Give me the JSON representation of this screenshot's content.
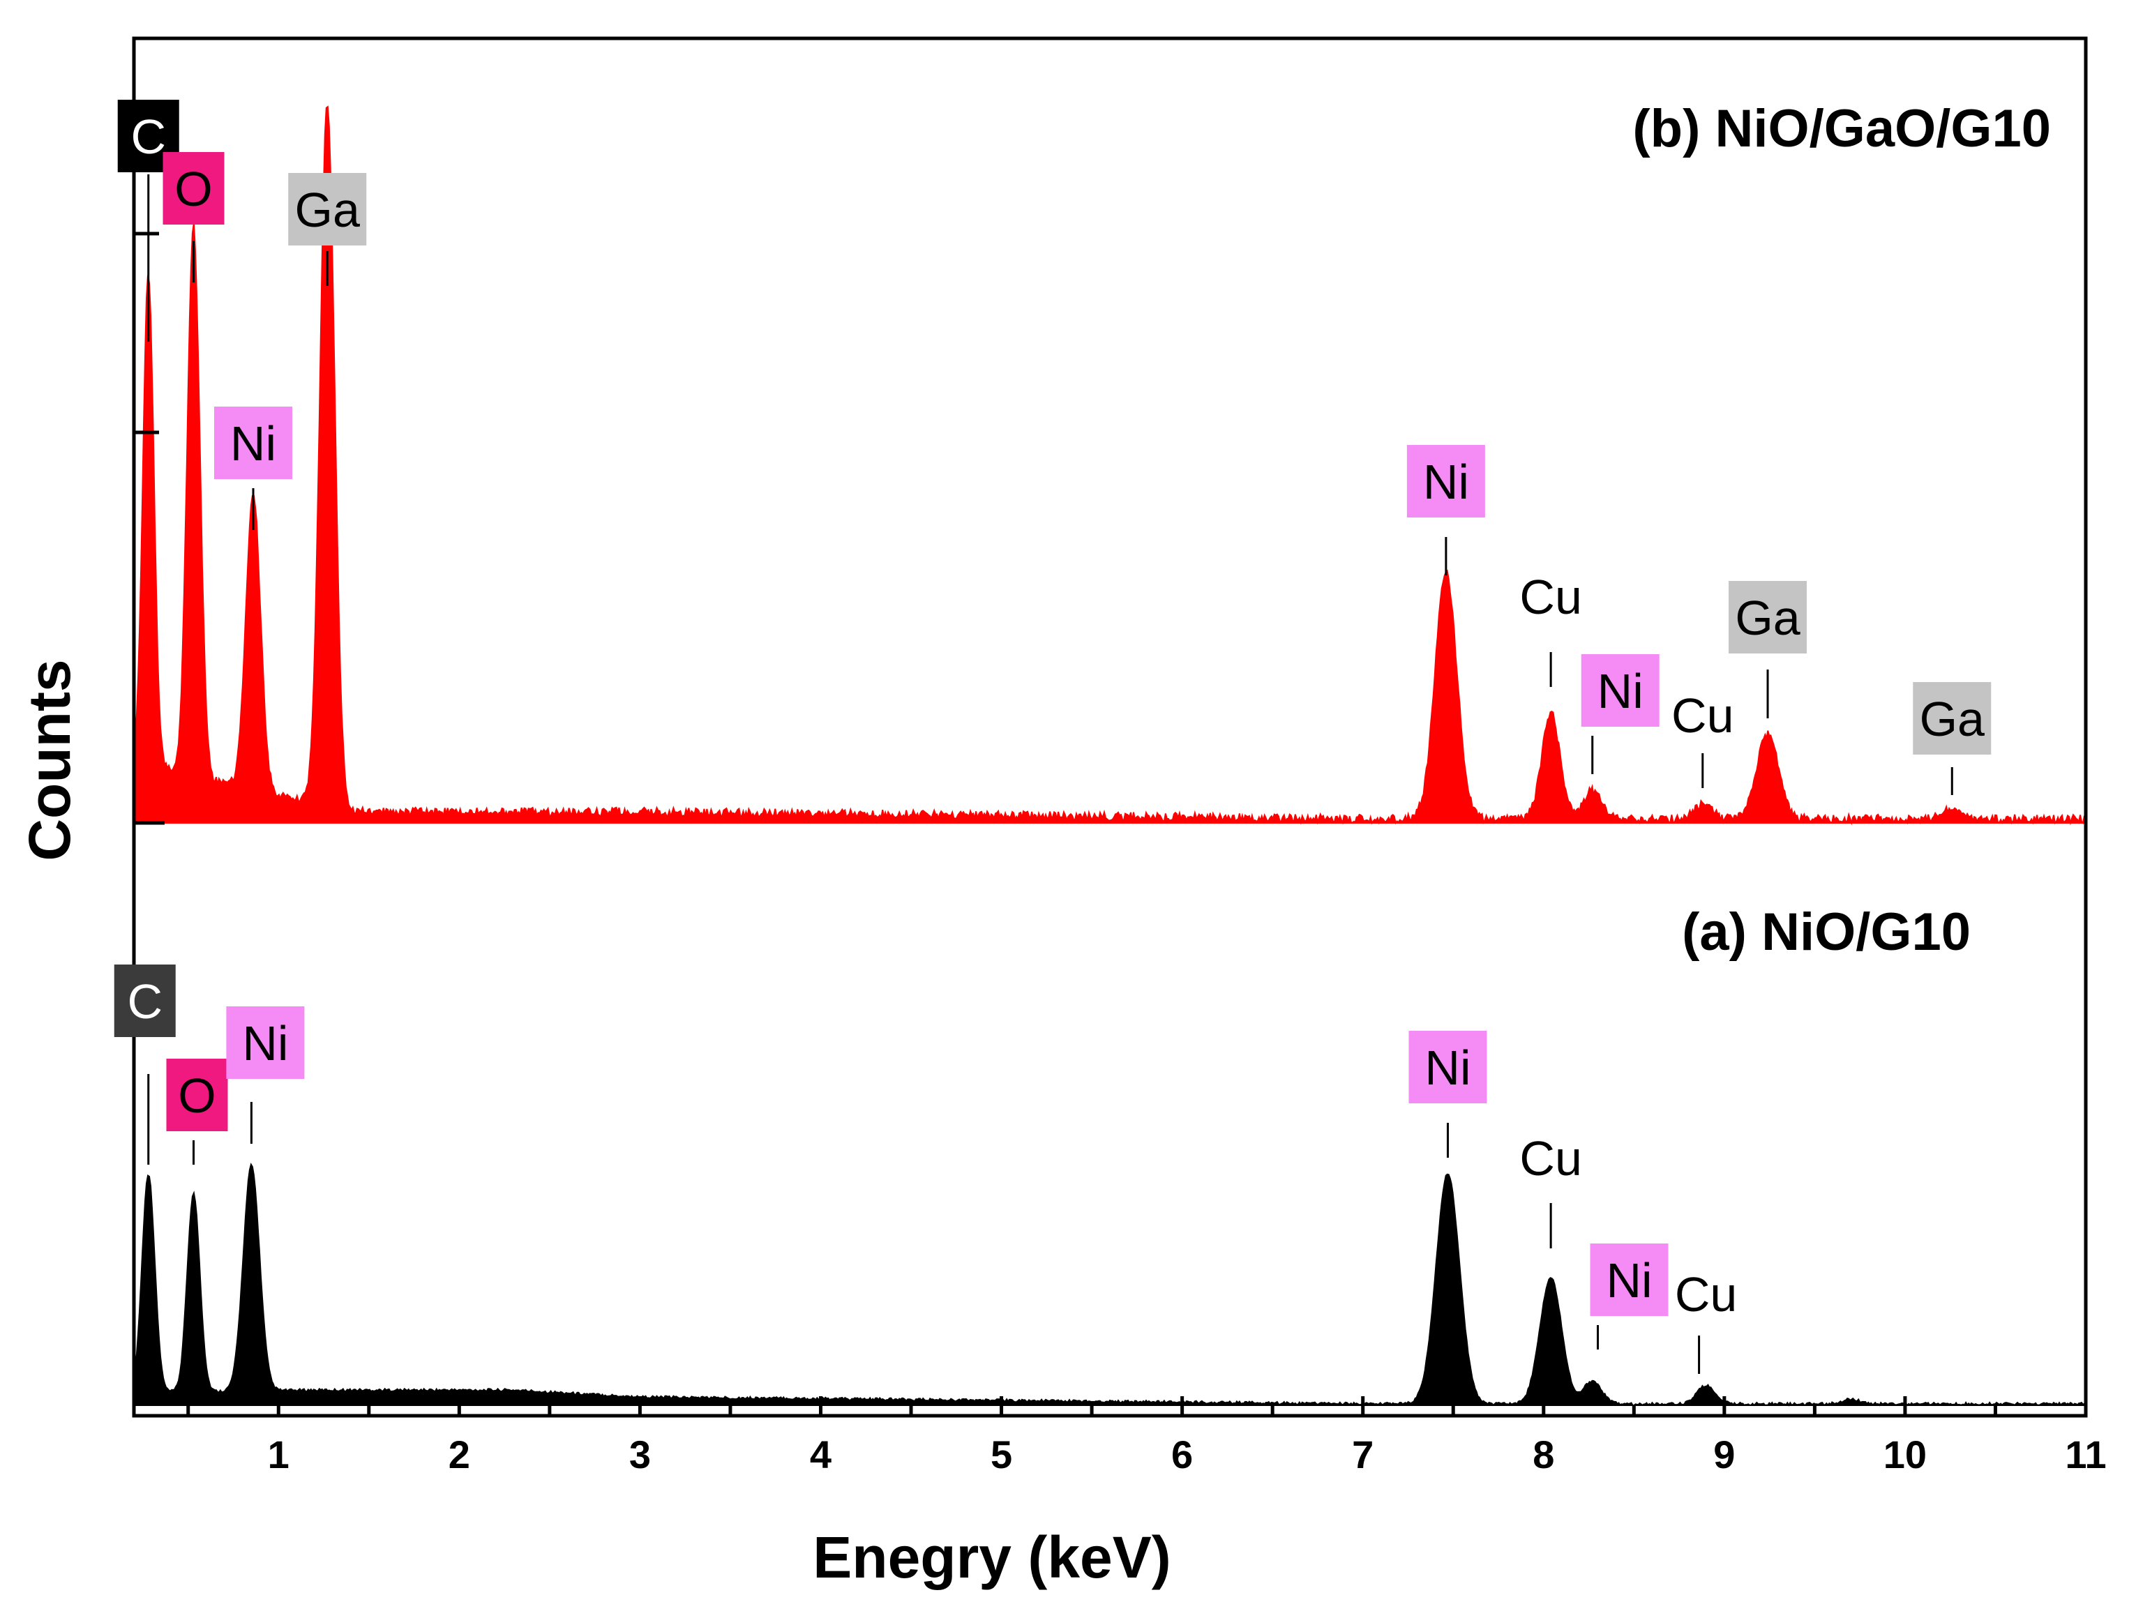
{
  "chart_data": {
    "type": "area",
    "title": "",
    "xlabel": "Enegry (keV)",
    "ylabel": "Counts",
    "xlim": [
      0.2,
      11
    ],
    "x_ticks": [
      1,
      2,
      3,
      4,
      5,
      6,
      7,
      8,
      9,
      10,
      11
    ],
    "y_ticks_visible": false,
    "stacked_offset": true,
    "colors": {
      "series_a": "#000000",
      "series_b": "#ff0000",
      "axis": "#000000"
    },
    "series": [
      {
        "id": "a",
        "name": "(a) NiO/G10",
        "color": "#000000",
        "baseline": 0,
        "peaks": [
          {
            "x": 0.28,
            "height": 0.95,
            "width": 0.035
          },
          {
            "x": 0.53,
            "height": 0.86,
            "width": 0.035
          },
          {
            "x": 0.85,
            "height": 0.98,
            "width": 0.045
          },
          {
            "x": 7.47,
            "height": 1.0,
            "width": 0.065
          },
          {
            "x": 8.04,
            "height": 0.55,
            "width": 0.06
          },
          {
            "x": 8.27,
            "height": 0.1,
            "width": 0.05
          },
          {
            "x": 8.9,
            "height": 0.08,
            "width": 0.05
          },
          {
            "x": 9.7,
            "height": 0.02,
            "width": 0.05
          }
        ],
        "background": [
          [
            0.2,
            0.05
          ],
          [
            1.2,
            0.06
          ],
          [
            2.3,
            0.06
          ],
          [
            3.0,
            0.03
          ],
          [
            7.0,
            0.0
          ],
          [
            11,
            0.0
          ]
        ],
        "labels": [
          {
            "text": "C",
            "x": 0.28,
            "style": "dark"
          },
          {
            "text": "O",
            "x": 0.53,
            "style": "magenta"
          },
          {
            "text": "Ni",
            "x": 0.85,
            "style": "pink"
          },
          {
            "text": "Ni",
            "x": 7.47,
            "style": "pink"
          },
          {
            "text": "Cu",
            "x": 8.04,
            "style": "plain"
          },
          {
            "text": "Ni",
            "x": 8.3,
            "style": "pink"
          },
          {
            "text": "Cu",
            "x": 8.86,
            "style": "plain"
          }
        ]
      },
      {
        "id": "b",
        "name": "(b) NiO/GaO/G10",
        "color": "#ff0000",
        "baseline": 1,
        "peaks": [
          {
            "x": 0.28,
            "height": 0.7,
            "width": 0.03
          },
          {
            "x": 0.53,
            "height": 0.78,
            "width": 0.035
          },
          {
            "x": 0.86,
            "height": 0.42,
            "width": 0.04
          },
          {
            "x": 1.27,
            "height": 1.0,
            "width": 0.04
          },
          {
            "x": 7.46,
            "height": 0.35,
            "width": 0.06
          },
          {
            "x": 8.04,
            "height": 0.15,
            "width": 0.05
          },
          {
            "x": 8.27,
            "height": 0.04,
            "width": 0.05
          },
          {
            "x": 8.88,
            "height": 0.02,
            "width": 0.05
          },
          {
            "x": 9.24,
            "height": 0.12,
            "width": 0.06
          },
          {
            "x": 10.26,
            "height": 0.015,
            "width": 0.05
          }
        ],
        "background": [
          [
            0.2,
            0.08
          ],
          [
            1.4,
            0.01
          ],
          [
            3.0,
            0.01
          ],
          [
            7.0,
            0.0
          ],
          [
            11,
            0.0
          ]
        ],
        "labels": [
          {
            "text": "C",
            "x": 0.28,
            "style": "black"
          },
          {
            "text": "O",
            "x": 0.53,
            "style": "magenta"
          },
          {
            "text": "Ga",
            "x": 1.27,
            "style": "gray"
          },
          {
            "text": "Ni",
            "x": 0.86,
            "style": "pink"
          },
          {
            "text": "Ni",
            "x": 7.46,
            "style": "pink"
          },
          {
            "text": "Cu",
            "x": 8.04,
            "style": "plain"
          },
          {
            "text": "Ni",
            "x": 8.27,
            "style": "pink"
          },
          {
            "text": "Cu",
            "x": 8.88,
            "style": "plain"
          },
          {
            "text": "Ga",
            "x": 9.24,
            "style": "gray"
          },
          {
            "text": "Ga",
            "x": 10.26,
            "style": "gray"
          }
        ]
      }
    ],
    "label_styles": {
      "black": {
        "bg": "#000000",
        "fg": "#ffffff"
      },
      "dark": {
        "bg": "#3b3b3b",
        "fg": "#ffffff"
      },
      "magenta": {
        "bg": "#f0197f",
        "fg": "#000000"
      },
      "pink": {
        "bg": "#f58cf5",
        "fg": "#000000"
      },
      "gray": {
        "bg": "#c4c4c4",
        "fg": "#000000"
      },
      "plain": {
        "bg": "none",
        "fg": "#000000"
      }
    }
  }
}
